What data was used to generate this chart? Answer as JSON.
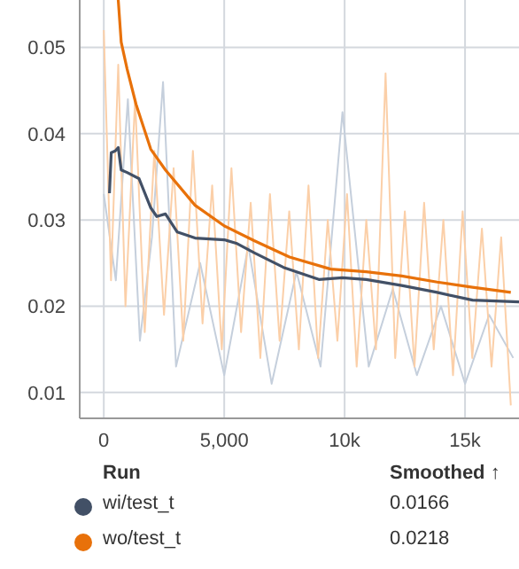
{
  "chart_data": {
    "type": "line",
    "xlim": [
      -1000,
      17240
    ],
    "ylim": [
      0.007,
      0.0555
    ],
    "xticks": [
      0,
      {
        "value": 5000,
        "label": "5,000"
      },
      {
        "value": 10000,
        "label": "10k"
      },
      {
        "value": 15000,
        "label": "15k"
      }
    ],
    "yticks": [
      0.01,
      0.02,
      0.03,
      0.04,
      0.05
    ],
    "grid": true,
    "legend": "bottom",
    "marker": "none",
    "line_style": "solid",
    "annotations": [
      "Run",
      "Smoothed ↑",
      "0.0166",
      "0.0218"
    ],
    "series": [
      {
        "color": "#c5cfdc",
        "x": [
          0,
          500,
          1000,
          1500,
          2000,
          2460,
          3000,
          4000,
          5000,
          6000,
          6970,
          8000,
          9000,
          9910,
          11000,
          12000,
          13000,
          14000,
          15000,
          16000,
          17000
        ],
        "values": [
          0.033,
          0.023,
          0.044,
          0.016,
          0.028,
          0.046,
          0.013,
          0.025,
          0.012,
          0.027,
          0.011,
          0.024,
          0.013,
          0.0425,
          0.013,
          0.022,
          0.012,
          0.02,
          0.011,
          0.019,
          0.014
        ]
      },
      {
        "color": "#fbcfa8",
        "x": [
          0,
          300,
          600,
          900,
          1300,
          1700,
          2100,
          2500,
          2900,
          3300,
          3700,
          4100,
          4500,
          4900,
          5300,
          5700,
          6100,
          6500,
          6900,
          7300,
          7700,
          8100,
          8500,
          8900,
          9300,
          9700,
          10100,
          10500,
          10900,
          11300,
          11700,
          12100,
          12500,
          12900,
          13300,
          13700,
          14100,
          14500,
          14900,
          15300,
          15700,
          16100,
          16500,
          16900
        ],
        "values": [
          0.052,
          0.023,
          0.048,
          0.02,
          0.044,
          0.017,
          0.038,
          0.019,
          0.036,
          0.016,
          0.038,
          0.018,
          0.034,
          0.015,
          0.036,
          0.017,
          0.032,
          0.014,
          0.033,
          0.016,
          0.031,
          0.015,
          0.034,
          0.014,
          0.03,
          0.016,
          0.033,
          0.013,
          0.03,
          0.015,
          0.047,
          0.014,
          0.031,
          0.013,
          0.032,
          0.015,
          0.03,
          0.012,
          0.031,
          0.014,
          0.029,
          0.013,
          0.028,
          0.0085
        ]
      },
      {
        "name": "wi/test_t",
        "color": "#425066",
        "x": [
          235,
          309,
          478,
          600,
          723,
          968,
          1460,
          1950,
          2200,
          2560,
          3050,
          3790,
          5010,
          5500,
          6240,
          7460,
          8930,
          9910,
          10900,
          12370,
          13840,
          15310,
          17240
        ],
        "values": [
          0.0331,
          0.0378,
          0.038,
          0.0384,
          0.0358,
          0.0355,
          0.0348,
          0.0314,
          0.0304,
          0.0307,
          0.0286,
          0.0279,
          0.0277,
          0.0273,
          0.0262,
          0.0245,
          0.0231,
          0.0233,
          0.0231,
          0.0224,
          0.0216,
          0.0207,
          0.0205
        ]
      },
      {
        "name": "wo/test_t",
        "color": "#e8710a",
        "x": [
          600,
          723,
          968,
          1340,
          1950,
          2560,
          3790,
          5010,
          6240,
          7710,
          9420,
          10900,
          12370,
          13840,
          15310,
          16900
        ],
        "values": [
          0.0555,
          0.0506,
          0.0475,
          0.0434,
          0.0382,
          0.0358,
          0.0317,
          0.0293,
          0.0276,
          0.0257,
          0.0243,
          0.024,
          0.0235,
          0.0228,
          0.0222,
          0.0216
        ]
      }
    ]
  }
}
